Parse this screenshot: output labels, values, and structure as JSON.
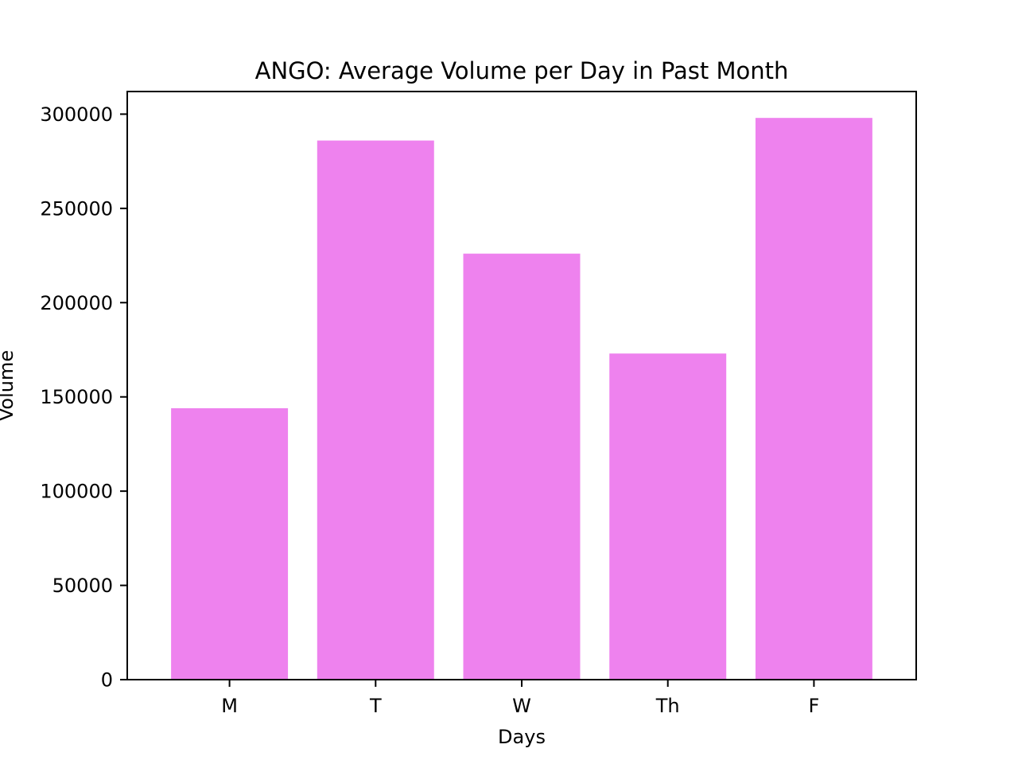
{
  "chart_data": {
    "type": "bar",
    "title": "ANGO: Average Volume per Day in Past Month",
    "xlabel": "Days",
    "ylabel": "Volume",
    "categories": [
      "M",
      "T",
      "W",
      "Th",
      "F"
    ],
    "values": [
      144000,
      286000,
      226000,
      173000,
      298000
    ],
    "ylim": [
      0,
      312000
    ],
    "yticks": [
      0,
      50000,
      100000,
      150000,
      200000,
      250000,
      300000
    ],
    "ytick_labels": [
      "0",
      "50000",
      "100000",
      "150000",
      "200000",
      "250000",
      "300000"
    ],
    "bar_color": "#EE82EE",
    "grid": false,
    "legend": "none"
  }
}
